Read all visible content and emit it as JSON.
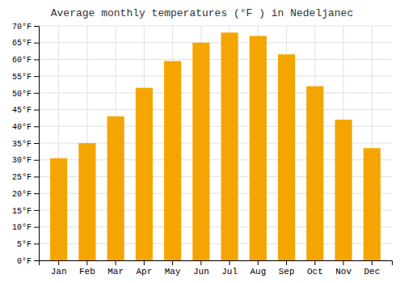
{
  "chart_data": {
    "type": "bar",
    "title": "Average monthly temperatures (°F ) in Nedeljanec",
    "categories": [
      "Jan",
      "Feb",
      "Mar",
      "Apr",
      "May",
      "Jun",
      "Jul",
      "Aug",
      "Sep",
      "Oct",
      "Nov",
      "Dec"
    ],
    "values": [
      30.5,
      35.0,
      43.0,
      51.5,
      59.5,
      65.0,
      68.0,
      67.0,
      61.5,
      52.0,
      42.0,
      33.5
    ],
    "color": "#F5A500",
    "ylim": [
      0,
      70
    ],
    "yticks": [
      {
        "value": 0,
        "label": "0°F"
      },
      {
        "value": 5,
        "label": "5°F"
      },
      {
        "value": 10,
        "label": "10°F"
      },
      {
        "value": 15,
        "label": "15°F"
      },
      {
        "value": 20,
        "label": "20°F"
      },
      {
        "value": 25,
        "label": "25°F"
      },
      {
        "value": 30,
        "label": "30°F"
      },
      {
        "value": 35,
        "label": "35°F"
      },
      {
        "value": 40,
        "label": "40°F"
      },
      {
        "value": 45,
        "label": "45°F"
      },
      {
        "value": 50,
        "label": "50°F"
      },
      {
        "value": 55,
        "label": "55°F"
      },
      {
        "value": 60,
        "label": "60°F"
      },
      {
        "value": 65,
        "label": "65°F"
      },
      {
        "value": 70,
        "label": "70°F"
      }
    ],
    "grid": true
  }
}
